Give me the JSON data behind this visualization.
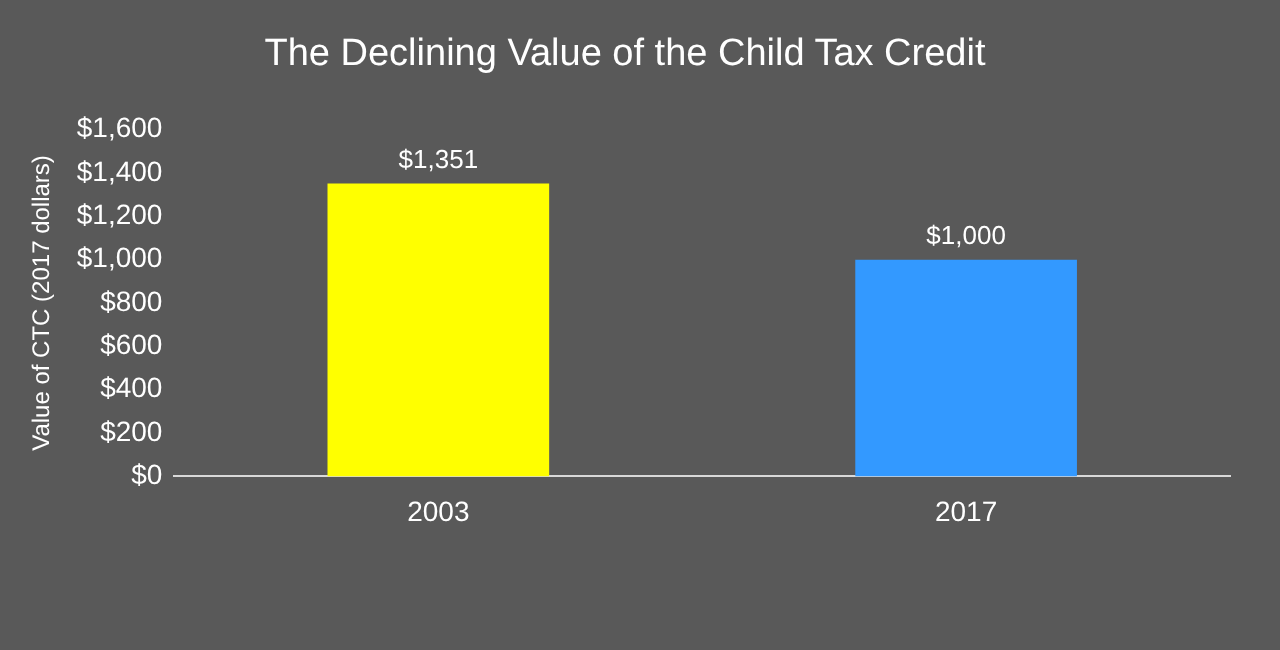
{
  "chart_data": {
    "type": "bar",
    "title": "The Declining Value of the Child Tax Credit",
    "ylabel": "Value of CTC (2017 dollars)",
    "categories": [
      "2003",
      "2017"
    ],
    "values": [
      1351,
      1000
    ],
    "colors": [
      "#ffff00",
      "#3399ff"
    ],
    "value_labels": [
      "$1,351",
      "$1,000"
    ],
    "ylim": [
      0,
      1600
    ],
    "yticks": [
      {
        "value": 0,
        "label": "$0"
      },
      {
        "value": 200,
        "label": "$200"
      },
      {
        "value": 400,
        "label": "$400"
      },
      {
        "value": 600,
        "label": "$600"
      },
      {
        "value": 800,
        "label": "$800"
      },
      {
        "value": 1000,
        "label": "$1,000"
      },
      {
        "value": 1200,
        "label": "$1,200"
      },
      {
        "value": 1400,
        "label": "$1,400"
      },
      {
        "value": 1600,
        "label": "$1,600"
      }
    ],
    "grid": false,
    "legend": false
  }
}
